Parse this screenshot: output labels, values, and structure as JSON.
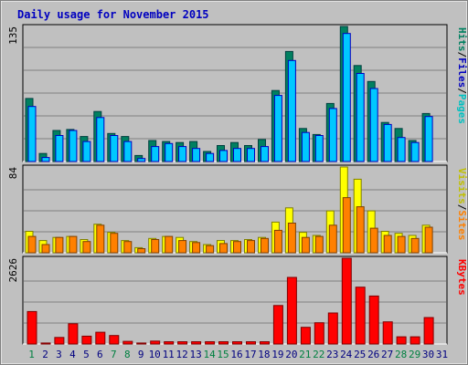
{
  "title": "Daily usage for November 2015",
  "colors": {
    "background": "#c0c0c0",
    "title": "#0000c0",
    "hits": "#00c0c0",
    "hits_edge": "#008080",
    "files": "#00c8ff",
    "files_edge": "#0000c0",
    "pages": "#00c0c0",
    "pages_fill": "#008060",
    "visits": "#ffff00",
    "visits_edge": "#808000",
    "sites": "#ff8000",
    "sites_edge": "#804000",
    "kbytes": "#ff0000",
    "kbytes_edge": "#800000",
    "weekend_label": "#008040",
    "weekday_label": "#000080"
  },
  "chart_data": [
    {
      "type": "bar",
      "panel": "hits-files-pages",
      "ylim": [
        0,
        135
      ],
      "ymax_label": "135",
      "legend": [
        {
          "name": "Pages",
          "color": "#00c0c0"
        },
        {
          "name": "/",
          "color": "#000000"
        },
        {
          "name": "Files",
          "color": "#0000c0"
        },
        {
          "name": "/",
          "color": "#000000"
        },
        {
          "name": "Hits",
          "color": "#008060"
        }
      ],
      "categories": [
        "1",
        "2",
        "3",
        "4",
        "5",
        "6",
        "7",
        "8",
        "9",
        "10",
        "11",
        "12",
        "13",
        "14",
        "15",
        "16",
        "17",
        "18",
        "19",
        "20",
        "21",
        "22",
        "23",
        "24",
        "25",
        "26",
        "27",
        "28",
        "29",
        "30",
        "31"
      ],
      "series": [
        {
          "name": "Hits",
          "values": [
            63,
            8,
            31,
            32,
            25,
            50,
            28,
            25,
            6,
            21,
            20,
            19,
            20,
            10,
            16,
            19,
            16,
            22,
            71,
            110,
            33,
            27,
            58,
            135,
            96,
            80,
            39,
            33,
            21,
            48,
            0
          ]
        },
        {
          "name": "Files",
          "values": [
            55,
            4,
            26,
            31,
            20,
            44,
            26,
            20,
            3,
            15,
            18,
            15,
            13,
            8,
            11,
            13,
            13,
            15,
            66,
            101,
            29,
            26,
            53,
            128,
            88,
            73,
            37,
            24,
            19,
            45,
            0
          ]
        },
        {
          "name": "Pages",
          "values": [
            0,
            0,
            0,
            0,
            0,
            0,
            0,
            0,
            0,
            0,
            0,
            0,
            0,
            0,
            0,
            0,
            0,
            0,
            0,
            0,
            0,
            0,
            0,
            0,
            0,
            0,
            0,
            0,
            0,
            0,
            0
          ]
        }
      ]
    },
    {
      "type": "bar",
      "panel": "visits-sites",
      "ylim": [
        0,
        84
      ],
      "ymax_label": "84",
      "legend": [
        {
          "name": "Sites",
          "color": "#ff8000"
        },
        {
          "name": "/",
          "color": "#000000"
        },
        {
          "name": "Visits",
          "color": "#c0c000"
        }
      ],
      "categories": [
        "1",
        "2",
        "3",
        "4",
        "5",
        "6",
        "7",
        "8",
        "9",
        "10",
        "11",
        "12",
        "13",
        "14",
        "15",
        "16",
        "17",
        "18",
        "19",
        "20",
        "21",
        "22",
        "23",
        "24",
        "25",
        "26",
        "27",
        "28",
        "29",
        "30",
        "31"
      ],
      "series": [
        {
          "name": "Visits",
          "values": [
            21,
            12,
            15,
            16,
            13,
            28,
            20,
            12,
            5,
            14,
            16,
            15,
            11,
            8,
            12,
            12,
            13,
            15,
            30,
            44,
            20,
            17,
            41,
            84,
            72,
            41,
            21,
            19,
            17,
            27,
            0
          ]
        },
        {
          "name": "Sites",
          "values": [
            16,
            8,
            15,
            16,
            11,
            27,
            19,
            11,
            4,
            13,
            16,
            12,
            10,
            7,
            9,
            11,
            12,
            14,
            22,
            29,
            15,
            16,
            27,
            54,
            45,
            24,
            17,
            16,
            14,
            25,
            0
          ]
        }
      ]
    },
    {
      "type": "bar",
      "panel": "kbytes",
      "ylim": [
        0,
        2626
      ],
      "ymax_label": "2626",
      "legend": [
        {
          "name": "KBytes",
          "color": "#ff0000"
        }
      ],
      "categories": [
        "1",
        "2",
        "3",
        "4",
        "5",
        "6",
        "7",
        "8",
        "9",
        "10",
        "11",
        "12",
        "13",
        "14",
        "15",
        "16",
        "17",
        "18",
        "19",
        "20",
        "21",
        "22",
        "23",
        "24",
        "25",
        "26",
        "27",
        "28",
        "29",
        "30",
        "31"
      ],
      "series": [
        {
          "name": "KBytes",
          "values": [
            995,
            30,
            200,
            620,
            240,
            360,
            260,
            80,
            30,
            90,
            70,
            70,
            70,
            70,
            70,
            70,
            70,
            70,
            1180,
            2040,
            510,
            650,
            950,
            2626,
            1740,
            1470,
            680,
            220,
            220,
            810,
            0
          ]
        }
      ]
    }
  ],
  "x_labels": [
    {
      "label": "1",
      "weekend": true
    },
    {
      "label": "2",
      "weekend": false
    },
    {
      "label": "3",
      "weekend": false
    },
    {
      "label": "4",
      "weekend": false
    },
    {
      "label": "5",
      "weekend": false
    },
    {
      "label": "6",
      "weekend": false
    },
    {
      "label": "7",
      "weekend": true
    },
    {
      "label": "8",
      "weekend": true
    },
    {
      "label": "9",
      "weekend": false
    },
    {
      "label": "10",
      "weekend": false
    },
    {
      "label": "11",
      "weekend": false
    },
    {
      "label": "12",
      "weekend": false
    },
    {
      "label": "13",
      "weekend": false
    },
    {
      "label": "14",
      "weekend": true
    },
    {
      "label": "15",
      "weekend": true
    },
    {
      "label": "16",
      "weekend": false
    },
    {
      "label": "17",
      "weekend": false
    },
    {
      "label": "18",
      "weekend": false
    },
    {
      "label": "19",
      "weekend": false
    },
    {
      "label": "20",
      "weekend": false
    },
    {
      "label": "21",
      "weekend": true
    },
    {
      "label": "22",
      "weekend": true
    },
    {
      "label": "23",
      "weekend": false
    },
    {
      "label": "24",
      "weekend": false
    },
    {
      "label": "25",
      "weekend": false
    },
    {
      "label": "26",
      "weekend": false
    },
    {
      "label": "27",
      "weekend": false
    },
    {
      "label": "28",
      "weekend": true
    },
    {
      "label": "29",
      "weekend": true
    },
    {
      "label": "30",
      "weekend": false
    },
    {
      "label": "31",
      "weekend": false
    }
  ]
}
